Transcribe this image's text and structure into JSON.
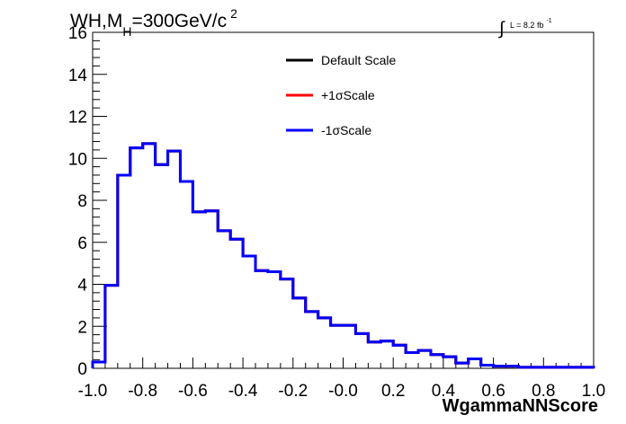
{
  "chart_data": {
    "type": "histogram",
    "title": "WH,M",
    "title_subscript": "H",
    "title_suffix": "=300GeV/c",
    "title_superscript": "2",
    "lumi_integral": "∫",
    "lumi_text": "L = 8.2 fb",
    "lumi_superscript": "-1",
    "xlabel": "WgammaNNScore",
    "ylabel": "",
    "xlim": [
      -1.0,
      1.0
    ],
    "ylim": [
      0,
      16
    ],
    "x_ticks": [
      "-1.0",
      "-0.8",
      "-0.6",
      "-0.4",
      "-0.2",
      "-0.0",
      "0.2",
      "0.4",
      "0.6",
      "0.8",
      "1.0"
    ],
    "y_ticks": [
      "0",
      "2",
      "4",
      "6",
      "8",
      "10",
      "12",
      "14",
      "16"
    ],
    "bin_edges": [
      -1.0,
      -0.95,
      -0.9,
      -0.85,
      -0.8,
      -0.75,
      -0.7,
      -0.65,
      -0.6,
      -0.55,
      -0.5,
      -0.45,
      -0.4,
      -0.35,
      -0.3,
      -0.25,
      -0.2,
      -0.15,
      -0.1,
      -0.05,
      0.0,
      0.05,
      0.1,
      0.15,
      0.2,
      0.25,
      0.3,
      0.35,
      0.4,
      0.45,
      0.5,
      0.55,
      0.6,
      0.65,
      0.7,
      0.75,
      0.8,
      0.85,
      0.9,
      0.95,
      1.0
    ],
    "legend_position": "top-center",
    "series": [
      {
        "name": "Default Scale",
        "color": "#000000",
        "values": [
          0.3,
          3.95,
          9.2,
          10.5,
          10.7,
          9.7,
          10.35,
          8.9,
          7.45,
          7.5,
          6.55,
          6.15,
          5.35,
          4.65,
          4.6,
          4.25,
          3.35,
          2.7,
          2.4,
          2.05,
          2.05,
          1.65,
          1.25,
          1.3,
          1.1,
          0.75,
          0.85,
          0.65,
          0.55,
          0.25,
          0.45,
          0.15,
          0.1,
          0.1,
          0.05,
          0.05,
          0.05,
          0.05,
          0.05,
          0.05
        ]
      },
      {
        "name": "+1σScale",
        "color": "#ff0000",
        "values": [
          0.3,
          3.95,
          9.2,
          10.5,
          10.7,
          9.7,
          10.35,
          8.9,
          7.45,
          7.5,
          6.55,
          6.15,
          5.35,
          4.65,
          4.6,
          4.25,
          3.35,
          2.7,
          2.4,
          2.05,
          2.05,
          1.65,
          1.25,
          1.3,
          1.1,
          0.75,
          0.85,
          0.65,
          0.55,
          0.25,
          0.45,
          0.15,
          0.1,
          0.1,
          0.05,
          0.05,
          0.05,
          0.05,
          0.05,
          0.05
        ]
      },
      {
        "name": "-1σScale",
        "color": "#0000ff",
        "values": [
          0.3,
          3.95,
          9.2,
          10.5,
          10.7,
          9.7,
          10.35,
          8.9,
          7.45,
          7.5,
          6.55,
          6.15,
          5.35,
          4.65,
          4.6,
          4.25,
          3.35,
          2.7,
          2.4,
          2.05,
          2.05,
          1.65,
          1.25,
          1.3,
          1.1,
          0.75,
          0.85,
          0.65,
          0.55,
          0.25,
          0.45,
          0.15,
          0.1,
          0.1,
          0.05,
          0.05,
          0.05,
          0.05,
          0.05,
          0.05
        ]
      }
    ],
    "grid": false
  }
}
